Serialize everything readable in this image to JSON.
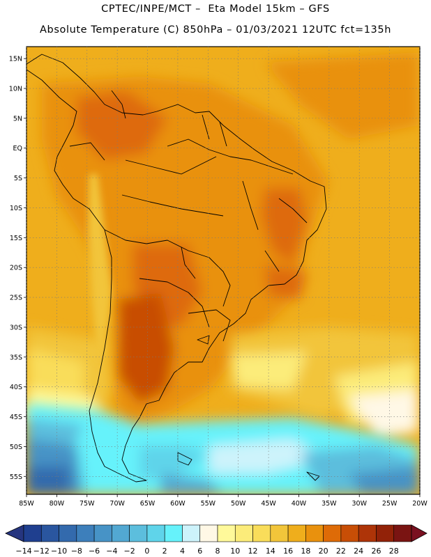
{
  "header": {
    "line1": "CPTEC/INPE/MCT –  Eta Model 15km – GFS",
    "line2": "Absolute Temperature (C) 850hPa – 01/03/2021 12UTC fct=135h"
  },
  "map": {
    "lat_labels": [
      "15N",
      "10N",
      "5N",
      "EQ",
      "5S",
      "10S",
      "15S",
      "20S",
      "25S",
      "30S",
      "35S",
      "40S",
      "45S",
      "50S",
      "55S"
    ],
    "lon_labels": [
      "85W",
      "80W",
      "75W",
      "70W",
      "65W",
      "60W",
      "55W",
      "50W",
      "45W",
      "40W",
      "35W",
      "30W",
      "25W",
      "20W"
    ],
    "lon_range": [
      -85,
      -20
    ],
    "lat_range": [
      -58,
      17
    ]
  },
  "colorbar": {
    "labels": [
      "−14",
      "−12",
      "−10",
      "−8",
      "−6",
      "−4",
      "−2",
      "0",
      "2",
      "4",
      "6",
      "8",
      "10",
      "12",
      "14",
      "16",
      "18",
      "20",
      "22",
      "24",
      "26",
      "28"
    ],
    "colors": [
      "#1f3f8f",
      "#2a569f",
      "#336aad",
      "#3d7fbb",
      "#4793c6",
      "#52a8d2",
      "#5cbedd",
      "#5fd4ea",
      "#66f2fb",
      "#cdf3fb",
      "#fff8e6",
      "#fff99a",
      "#fcec7a",
      "#f9dd5a",
      "#f2c53a",
      "#efae1c",
      "#e9910d",
      "#de6b07",
      "#c84e06",
      "#ae3408",
      "#922208",
      "#7a1412"
    ],
    "under_color": "#26357f",
    "over_color": "#7a1020"
  }
}
